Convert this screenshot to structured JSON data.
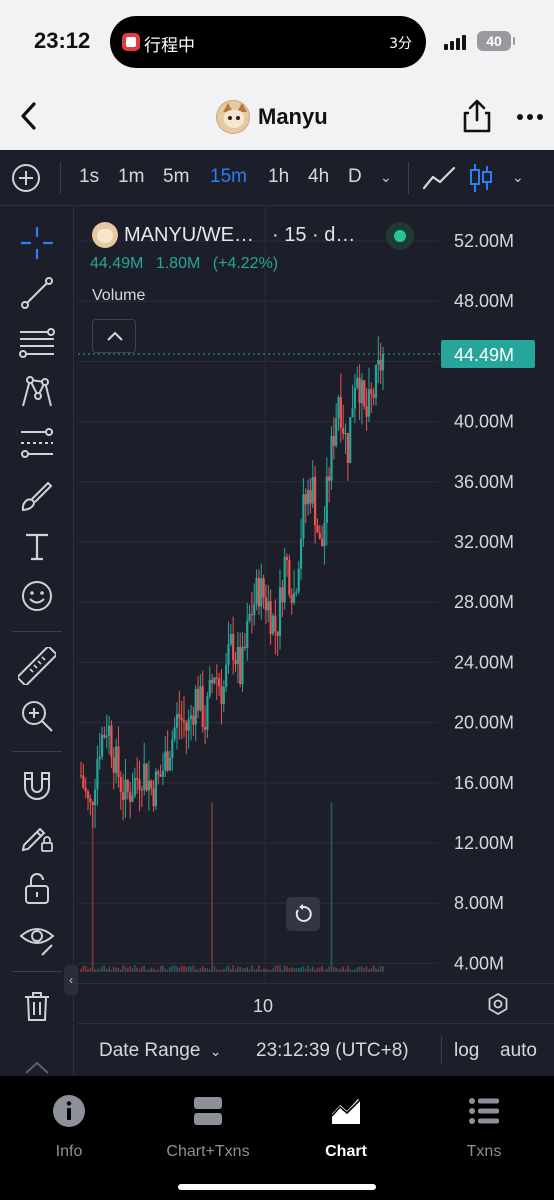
{
  "status_bar": {
    "time": "23:12",
    "island_text": "行程中",
    "island_right": "3分",
    "battery": "40"
  },
  "nav": {
    "title": "Manyu"
  },
  "toolbar": {
    "intervals": [
      "1s",
      "1m",
      "5m",
      "15m",
      "1h",
      "4h",
      "D"
    ],
    "active_interval": "15m"
  },
  "chart": {
    "symbol": "MANYU/WE…",
    "interval_label": "· 15 · d…",
    "last_price": "44.49M",
    "change": "1.80M",
    "change_pct": "(+4.22%)",
    "volume_label": "Volume",
    "price_tag": "44.49M",
    "x_label": "10"
  },
  "chart_data": {
    "type": "candlestick",
    "title": "",
    "y_axis": {
      "labels": [
        "52.00M",
        "48.00M",
        "44.00M",
        "40.00M",
        "36.00M",
        "32.00M",
        "28.00M",
        "24.00M",
        "20.00M",
        "16.00M",
        "12.00M",
        "8.00M",
        "4.00M"
      ],
      "values": [
        52,
        48,
        44,
        40,
        36,
        32,
        28,
        24,
        20,
        16,
        12,
        8,
        4
      ],
      "unit": "M",
      "ylim": [
        3.5,
        53
      ]
    },
    "x_axis": {
      "tick_labels": [
        "10"
      ]
    },
    "last_value": 44.49,
    "trend_closes": [
      16.5,
      14.0,
      18.5,
      20.0,
      17.0,
      15.0,
      16.0,
      17.0,
      15.5,
      16.5,
      18.5,
      20.5,
      19.5,
      22.0,
      20.0,
      23.5,
      22.0,
      25.5,
      23.0,
      27.0,
      29.0,
      28.0,
      26.0,
      31.0,
      28.5,
      34.0,
      36.0,
      31.0,
      37.0,
      42.0,
      38.0,
      44.0,
      40.0,
      42.0,
      44.49
    ],
    "colors": {
      "up": "#26a69a",
      "down": "#ef5350"
    }
  },
  "range_bar": {
    "date_range": "Date Range",
    "time": "23:12:39 (UTC+8)",
    "log": "log",
    "auto": "auto"
  },
  "tabs": [
    {
      "label": "Info",
      "icon": "info-icon"
    },
    {
      "label": "Chart+Txns",
      "icon": "split-view-icon"
    },
    {
      "label": "Chart",
      "icon": "chart-icon"
    },
    {
      "label": "Txns",
      "icon": "list-icon"
    }
  ],
  "active_tab": "Chart"
}
